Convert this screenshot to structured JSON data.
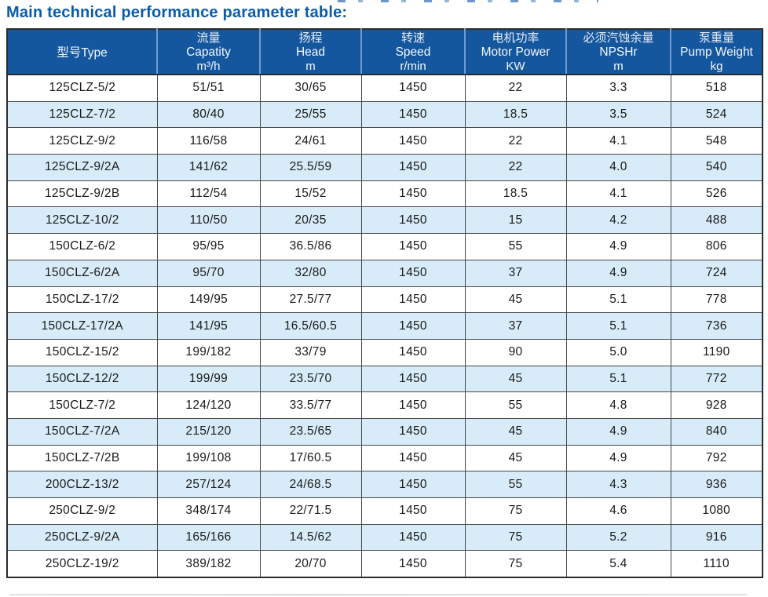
{
  "page": {
    "title": "Main technical performance parameter table:",
    "accent_color": "#0a5cab"
  },
  "table": {
    "header_bg": "#15579f",
    "stripe_bg": "#d7ecf8",
    "columns": [
      {
        "id": "type",
        "zh": "型号Type",
        "en": "",
        "unit": ""
      },
      {
        "id": "capacity",
        "zh": "流量",
        "en": "Capatity",
        "unit": "m³/h"
      },
      {
        "id": "head",
        "zh": "扬程",
        "en": "Head",
        "unit": "m"
      },
      {
        "id": "speed",
        "zh": "转速",
        "en": "Speed",
        "unit": "r/min"
      },
      {
        "id": "motor-power",
        "zh": "电机功率",
        "en": "Motor Power",
        "unit": "KW"
      },
      {
        "id": "npshr",
        "zh": "必须汽蚀余量",
        "en": "NPSHr",
        "unit": "m"
      },
      {
        "id": "pump-weight",
        "zh": "泵重量",
        "en": "Pump Weight",
        "unit": "kg"
      }
    ],
    "rows": [
      [
        "125CLZ-5/2",
        "51/51",
        "30/65",
        "1450",
        "22",
        "3.3",
        "518"
      ],
      [
        "125CLZ-7/2",
        "80/40",
        "25/55",
        "1450",
        "18.5",
        "3.5",
        "524"
      ],
      [
        "125CLZ-9/2",
        "116/58",
        "24/61",
        "1450",
        "22",
        "4.1",
        "548"
      ],
      [
        "125CLZ-9/2A",
        "141/62",
        "25.5/59",
        "1450",
        "22",
        "4.0",
        "540"
      ],
      [
        "125CLZ-9/2B",
        "112/54",
        "15/52",
        "1450",
        "18.5",
        "4.1",
        "526"
      ],
      [
        "125CLZ-10/2",
        "110/50",
        "20/35",
        "1450",
        "15",
        "4.2",
        "488"
      ],
      [
        "150CLZ-6/2",
        "95/95",
        "36.5/86",
        "1450",
        "55",
        "4.9",
        "806"
      ],
      [
        "150CLZ-6/2A",
        "95/70",
        "32/80",
        "1450",
        "37",
        "4.9",
        "724"
      ],
      [
        "150CLZ-17/2",
        "149/95",
        "27.5/77",
        "1450",
        "45",
        "5.1",
        "778"
      ],
      [
        "150CLZ-17/2A",
        "141/95",
        "16.5/60.5",
        "1450",
        "37",
        "5.1",
        "736"
      ],
      [
        "150CLZ-15/2",
        "199/182",
        "33/79",
        "1450",
        "90",
        "5.0",
        "1190"
      ],
      [
        "150CLZ-12/2",
        "199/99",
        "23.5/70",
        "1450",
        "45",
        "5.1",
        "772"
      ],
      [
        "150CLZ-7/2",
        "124/120",
        "33.5/77",
        "1450",
        "55",
        "4.8",
        "928"
      ],
      [
        "150CLZ-7/2A",
        "215/120",
        "23.5/65",
        "1450",
        "45",
        "4.9",
        "840"
      ],
      [
        "150CLZ-7/2B",
        "199/108",
        "17/60.5",
        "1450",
        "45",
        "4.9",
        "792"
      ],
      [
        "200CLZ-13/2",
        "257/124",
        "24/68.5",
        "1450",
        "55",
        "4.3",
        "936"
      ],
      [
        "250CLZ-9/2",
        "348/174",
        "22/71.5",
        "1450",
        "75",
        "4.6",
        "1080"
      ],
      [
        "250CLZ-9/2A",
        "165/166",
        "14.5/62",
        "1450",
        "75",
        "5.2",
        "916"
      ],
      [
        "250CLZ-19/2",
        "389/182",
        "20/70",
        "1450",
        "75",
        "5.4",
        "1110"
      ]
    ]
  }
}
